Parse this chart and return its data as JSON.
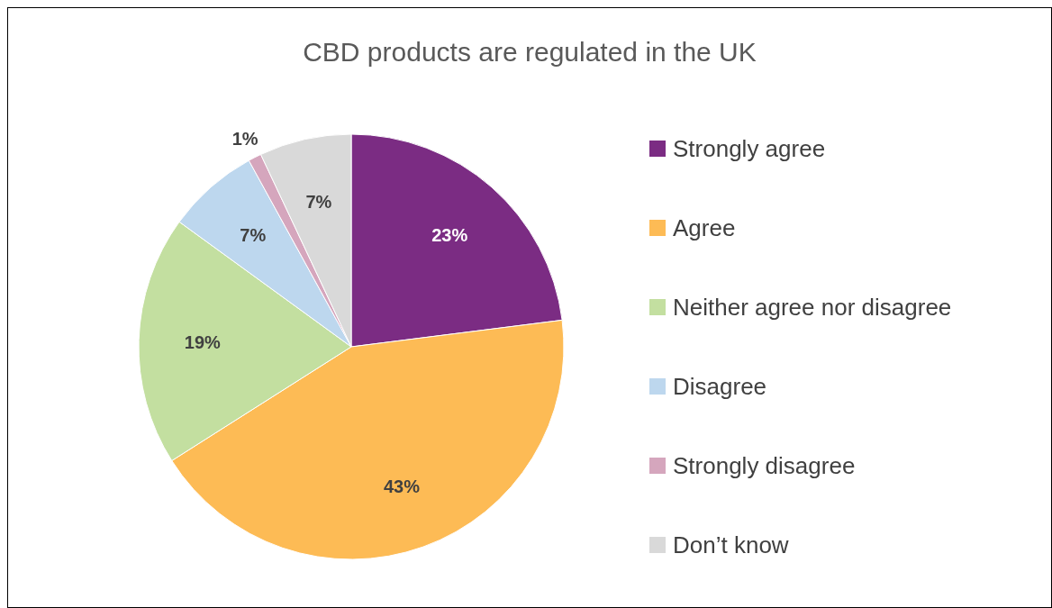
{
  "chart_data": {
    "type": "pie",
    "title": "CBD products are regulated in the UK",
    "categories": [
      "Strongly agree",
      "Agree",
      "Neither agree nor disagree",
      "Disagree",
      "Strongly disagree",
      "Don’t know"
    ],
    "values": [
      23,
      43,
      19,
      7,
      1,
      7
    ],
    "value_labels": [
      "23%",
      "43%",
      "19%",
      "7%",
      "1%",
      "7%"
    ],
    "colors": [
      "#7b2c83",
      "#fdbb55",
      "#c3dfa0",
      "#bdd7ee",
      "#d5a6bd",
      "#d9d9d9"
    ],
    "legend": "right"
  }
}
